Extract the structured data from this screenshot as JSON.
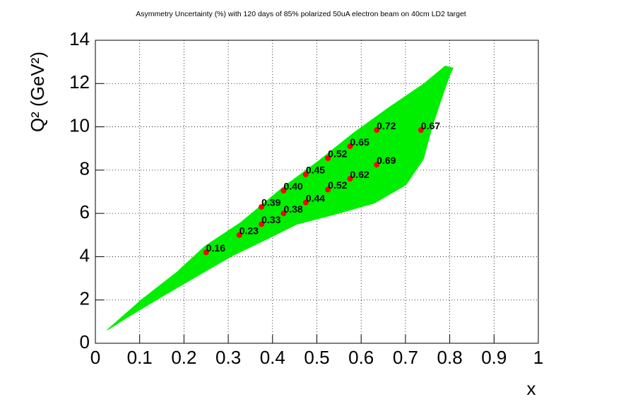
{
  "chart_data": {
    "type": "scatter",
    "title": "Asymmetry Uncertainty (%) with 120 days of 85% polarized 50uA electron beam on 40cm LD2 target",
    "x_label": "x",
    "y_label": "Q² (GeV²)",
    "xlim": [
      0,
      1
    ],
    "ylim": [
      0,
      14
    ],
    "xticks": [
      0,
      0.1,
      0.2,
      0.3,
      0.4,
      0.5,
      0.6,
      0.7,
      0.8,
      0.9,
      1
    ],
    "yticks": [
      0,
      2,
      4,
      6,
      8,
      10,
      12,
      14
    ],
    "grid": true,
    "color": "#ff0000",
    "x": [
      0.25,
      0.325,
      0.375,
      0.375,
      0.425,
      0.425,
      0.475,
      0.475,
      0.525,
      0.525,
      0.575,
      0.575,
      0.635,
      0.635,
      0.735
    ],
    "y": [
      4.2,
      5.0,
      5.5,
      6.3,
      6.0,
      7.05,
      6.5,
      7.8,
      7.1,
      8.55,
      7.6,
      9.1,
      8.25,
      9.85,
      9.85
    ],
    "uncertainty": [
      0.16,
      0.23,
      0.33,
      0.39,
      0.38,
      0.4,
      0.44,
      0.45,
      0.52,
      0.52,
      0.62,
      0.65,
      0.69,
      0.72,
      0.67
    ],
    "uncertainty_labels": [
      "0.16",
      "0.23",
      "0.33",
      "0.39",
      "0.38",
      "0.40",
      "0.44",
      "0.45",
      "0.52",
      "0.52",
      "0.62",
      "0.65",
      "0.69",
      "0.72",
      "0.67"
    ]
  }
}
